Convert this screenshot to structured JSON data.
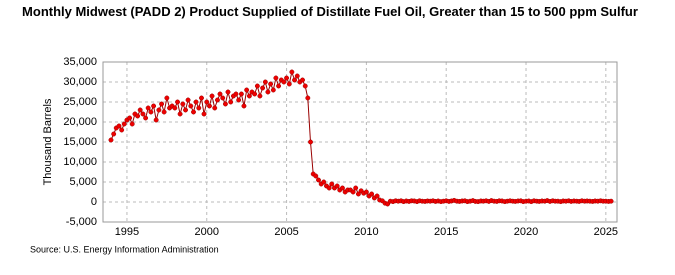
{
  "chart_data": {
    "type": "line",
    "title": "Monthly Midwest (PADD 2) Product Supplied of Distillate Fuel Oil, Greater than 15 to 500 ppm Sulfur",
    "y_label": "Thousand Barrels",
    "source": "Source: U.S. Energy Information Administration",
    "xlim": [
      1993.5,
      2025.7
    ],
    "ylim": [
      -5000,
      35000
    ],
    "xticks": [
      1995,
      2000,
      2005,
      2010,
      2015,
      2020,
      2025
    ],
    "yticks": [
      {
        "value": 35000,
        "label": "35,000"
      },
      {
        "value": 30000,
        "label": "30,000"
      },
      {
        "value": 25000,
        "label": "25,000"
      },
      {
        "value": 20000,
        "label": "20,000"
      },
      {
        "value": 15000,
        "label": "15,000"
      },
      {
        "value": 10000,
        "label": "10,000"
      },
      {
        "value": 5000,
        "label": "5,000"
      },
      0,
      {
        "value": -5000,
        "label": "-5,000"
      }
    ],
    "grid": true,
    "x": [
      1994,
      1994.17,
      1994.33,
      1994.5,
      1994.67,
      1994.83,
      1995,
      1995.17,
      1995.33,
      1995.5,
      1995.67,
      1995.83,
      1996,
      1996.17,
      1996.33,
      1996.5,
      1996.67,
      1996.83,
      1997,
      1997.17,
      1997.33,
      1997.5,
      1997.67,
      1997.83,
      1998,
      1998.17,
      1998.33,
      1998.5,
      1998.67,
      1998.83,
      1999,
      1999.17,
      1999.33,
      1999.5,
      1999.67,
      1999.83,
      2000,
      2000.17,
      2000.33,
      2000.5,
      2000.67,
      2000.83,
      2001,
      2001.17,
      2001.33,
      2001.5,
      2001.67,
      2001.83,
      2002,
      2002.17,
      2002.33,
      2002.5,
      2002.67,
      2002.83,
      2003,
      2003.17,
      2003.33,
      2003.5,
      2003.67,
      2003.83,
      2004,
      2004.17,
      2004.33,
      2004.5,
      2004.67,
      2004.83,
      2005,
      2005.17,
      2005.33,
      2005.5,
      2005.67,
      2005.83,
      2006,
      2006.17,
      2006.33,
      2006.5,
      2006.67,
      2006.83,
      2007,
      2007.17,
      2007.33,
      2007.5,
      2007.67,
      2007.83,
      2008,
      2008.17,
      2008.33,
      2008.5,
      2008.67,
      2008.83,
      2009,
      2009.17,
      2009.33,
      2009.5,
      2009.67,
      2009.83,
      2010,
      2010.17,
      2010.33,
      2010.5,
      2010.67,
      2010.83,
      2011,
      2011.17,
      2011.33,
      2011.5,
      2011.67,
      2011.83,
      2012,
      2012.17,
      2012.33,
      2012.5,
      2012.67,
      2012.83,
      2013,
      2013.17,
      2013.33,
      2013.5,
      2013.67,
      2013.83,
      2014,
      2014.17,
      2014.33,
      2014.5,
      2014.67,
      2014.83,
      2015,
      2015.17,
      2015.33,
      2015.5,
      2015.67,
      2015.83,
      2016,
      2016.17,
      2016.33,
      2016.5,
      2016.67,
      2016.83,
      2017,
      2017.17,
      2017.33,
      2017.5,
      2017.67,
      2017.83,
      2018,
      2018.17,
      2018.33,
      2018.5,
      2018.67,
      2018.83,
      2019,
      2019.17,
      2019.33,
      2019.5,
      2019.67,
      2019.83,
      2020,
      2020.17,
      2020.33,
      2020.5,
      2020.67,
      2020.83,
      2021,
      2021.17,
      2021.33,
      2021.5,
      2021.67,
      2021.83,
      2022,
      2022.17,
      2022.33,
      2022.5,
      2022.67,
      2022.83,
      2023,
      2023.17,
      2023.33,
      2023.5,
      2023.67,
      2023.83,
      2024,
      2024.17,
      2024.33,
      2024.5,
      2024.67,
      2024.83,
      2025,
      2025.17,
      2025.33
    ],
    "series": [
      {
        "name": "Product Supplied",
        "color": "#990000",
        "marker_color": "#ee0000",
        "values": [
          15500,
          17000,
          18500,
          19000,
          18000,
          19500,
          20500,
          21000,
          19500,
          22000,
          21500,
          23000,
          22000,
          21000,
          23500,
          22500,
          24000,
          20500,
          23000,
          24500,
          22500,
          26000,
          23500,
          24000,
          23500,
          25000,
          22000,
          24500,
          23000,
          25500,
          24000,
          22500,
          25000,
          23500,
          26000,
          22000,
          25000,
          24000,
          26500,
          23500,
          25500,
          27000,
          26000,
          24500,
          27500,
          25000,
          26500,
          27000,
          25500,
          27000,
          24000,
          28000,
          26500,
          27500,
          27000,
          29000,
          26500,
          28500,
          30000,
          27500,
          29500,
          28000,
          31000,
          29000,
          30500,
          30000,
          31000,
          29500,
          32500,
          30500,
          31500,
          30000,
          30500,
          29000,
          26000,
          15000,
          7000,
          6500,
          5500,
          4500,
          5000,
          4000,
          3500,
          4500,
          3500,
          4000,
          3000,
          3500,
          2500,
          3000,
          3000,
          2500,
          3500,
          2000,
          2800,
          2200,
          2500,
          1500,
          2000,
          1000,
          1500,
          500,
          300,
          -300,
          -500,
          200,
          100,
          300,
          200,
          300,
          100,
          250,
          150,
          300,
          250,
          100,
          300,
          200,
          150,
          250,
          200,
          300,
          150,
          250,
          100,
          200,
          300,
          150,
          250,
          400,
          200,
          150,
          250,
          300,
          100,
          200,
          350,
          150,
          100,
          250,
          200,
          300,
          150,
          350,
          200,
          150,
          300,
          250,
          100,
          200,
          300,
          200,
          150,
          250,
          300,
          100,
          200,
          250,
          100,
          300,
          200,
          150,
          250,
          200,
          350,
          150,
          300,
          200,
          200,
          100,
          250,
          200,
          300,
          150,
          250,
          200,
          150,
          300,
          200,
          250,
          200,
          150,
          250,
          200,
          300,
          200,
          200,
          150,
          200
        ]
      }
    ]
  }
}
